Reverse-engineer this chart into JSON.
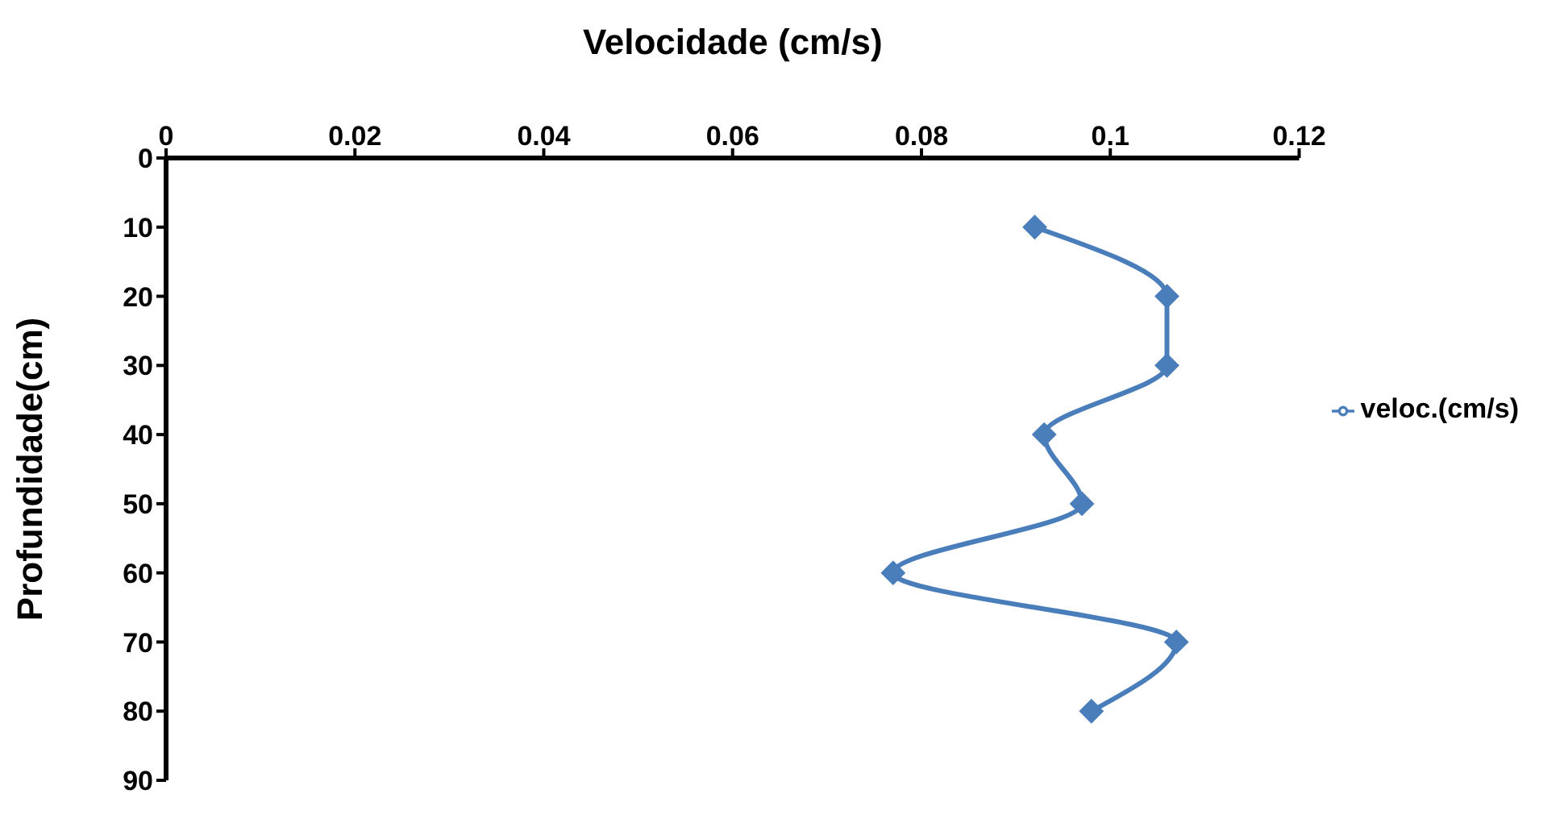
{
  "chart_data": {
    "type": "line",
    "xlabel": "Velocidade (cm/s)",
    "ylabel": "Profundidade(cm)",
    "orientation": "horizontal",
    "x": [
      10,
      20,
      30,
      40,
      50,
      60,
      70,
      80
    ],
    "series": [
      {
        "name": "veloc.(cm/s)",
        "color": "#4a7ebb",
        "values": [
          0.092,
          0.106,
          0.106,
          0.093,
          0.097,
          0.077,
          0.107,
          0.098
        ]
      }
    ],
    "xlim": [
      0,
      0.12
    ],
    "xticks": [
      0,
      0.02,
      0.04,
      0.06,
      0.08,
      0.1,
      0.12
    ],
    "ylim": [
      90,
      0
    ],
    "yticks": [
      0,
      10,
      20,
      30,
      40,
      50,
      60,
      70,
      80,
      90
    ],
    "marker": "diamond",
    "legend": "right",
    "grid": false
  }
}
